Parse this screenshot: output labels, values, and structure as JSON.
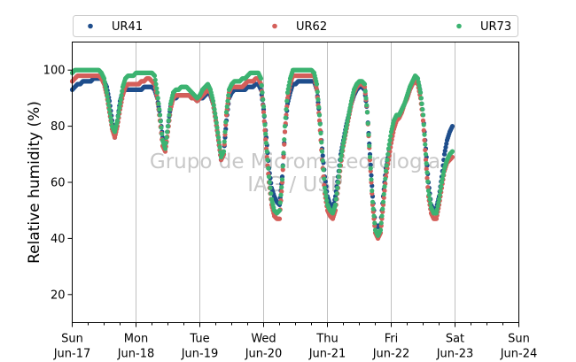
{
  "chart_data": {
    "type": "scatter",
    "title": "",
    "xlabel": "",
    "ylabel": "Relative humidity (%)",
    "ylim": [
      10,
      110
    ],
    "yticks": [
      20,
      40,
      60,
      80,
      100
    ],
    "xlim": [
      "2018-06-17 00:00",
      "2018-06-24 00:00"
    ],
    "xticks": [
      {
        "day": "Sun",
        "date": "Jun-17"
      },
      {
        "day": "Mon",
        "date": "Jun-18"
      },
      {
        "day": "Tue",
        "date": "Jun-19"
      },
      {
        "day": "Wed",
        "date": "Jun-20"
      },
      {
        "day": "Thu",
        "date": "Jun-21"
      },
      {
        "day": "Fri",
        "date": "Jun-22"
      },
      {
        "day": "Sat",
        "date": "Jun-23"
      },
      {
        "day": "Sun",
        "date": "Jun-24"
      }
    ],
    "grid": "vertical",
    "legend_position": "top",
    "watermark": [
      "Grupo de Micrometeorologia",
      "IAG / USP"
    ],
    "sample_interval_hours": 1,
    "series": [
      {
        "name": "UR41",
        "color": "#1f4e8c",
        "x_start": "2018-06-17 00:00",
        "values": [
          93,
          94,
          95,
          95,
          96,
          96,
          96,
          96,
          97,
          97,
          97,
          97,
          96,
          94,
          89,
          82,
          76,
          82,
          89,
          92,
          93,
          93,
          93,
          93,
          93,
          93,
          93,
          94,
          94,
          94,
          94,
          93,
          90,
          84,
          76,
          72,
          80,
          87,
          90,
          90,
          91,
          91,
          91,
          91,
          91,
          90,
          90,
          89,
          90,
          90,
          91,
          92,
          91,
          88,
          82,
          75,
          68,
          70,
          82,
          90,
          92,
          93,
          93,
          93,
          93,
          93,
          94,
          94,
          94,
          95,
          95,
          93,
          86,
          76,
          65,
          58,
          55,
          53,
          52,
          62,
          78,
          88,
          92,
          95,
          95,
          96,
          96,
          96,
          96,
          96,
          96,
          96,
          93,
          84,
          72,
          62,
          55,
          52,
          50,
          55,
          62,
          70,
          75,
          80,
          84,
          88,
          91,
          93,
          94,
          94,
          93,
          85,
          70,
          55,
          45,
          44,
          45,
          55,
          65,
          70,
          75,
          80,
          83,
          84,
          86,
          88,
          90,
          93,
          95,
          97,
          96,
          92,
          84,
          72,
          60,
          52,
          50,
          51,
          55,
          62,
          70,
          75,
          78,
          80
        ]
      },
      {
        "name": "UR62",
        "color": "#d45f5a",
        "x_start": "2018-06-17 00:00",
        "values": [
          96,
          97,
          98,
          98,
          98,
          98,
          98,
          98,
          98,
          98,
          98,
          97,
          95,
          91,
          85,
          79,
          76,
          80,
          86,
          91,
          94,
          95,
          95,
          95,
          95,
          95,
          96,
          96,
          97,
          97,
          96,
          95,
          90,
          82,
          73,
          71,
          78,
          86,
          90,
          91,
          91,
          91,
          91,
          91,
          91,
          90,
          90,
          89,
          90,
          91,
          92,
          93,
          92,
          88,
          82,
          75,
          68,
          70,
          84,
          92,
          94,
          94,
          94,
          94,
          94,
          95,
          96,
          96,
          96,
          97,
          97,
          95,
          85,
          72,
          60,
          52,
          48,
          47,
          47,
          60,
          78,
          90,
          95,
          98,
          98,
          98,
          98,
          98,
          98,
          98,
          98,
          98,
          93,
          82,
          68,
          56,
          50,
          48,
          47,
          50,
          58,
          66,
          73,
          78,
          83,
          88,
          92,
          94,
          95,
          95,
          94,
          85,
          68,
          52,
          42,
          40,
          42,
          52,
          62,
          68,
          74,
          79,
          82,
          83,
          85,
          88,
          90,
          93,
          95,
          96,
          95,
          90,
          82,
          68,
          55,
          49,
          47,
          47,
          52,
          58,
          64,
          67,
          68,
          69
        ]
      },
      {
        "name": "UR73",
        "color": "#3cb371",
        "x_start": "2018-06-17 00:00",
        "values": [
          99,
          100,
          100,
          100,
          100,
          100,
          100,
          100,
          100,
          100,
          100,
          99,
          97,
          92,
          86,
          80,
          78,
          82,
          88,
          94,
          97,
          98,
          98,
          98,
          99,
          99,
          99,
          99,
          99,
          99,
          99,
          98,
          92,
          84,
          75,
          72,
          80,
          88,
          92,
          93,
          93,
          94,
          94,
          94,
          93,
          92,
          91,
          90,
          91,
          93,
          94,
          95,
          93,
          89,
          83,
          76,
          69,
          71,
          85,
          93,
          95,
          96,
          96,
          96,
          97,
          97,
          98,
          99,
          99,
          99,
          99,
          97,
          87,
          74,
          62,
          54,
          50,
          49,
          50,
          61,
          80,
          92,
          97,
          100,
          100,
          100,
          100,
          100,
          100,
          100,
          100,
          99,
          95,
          84,
          71,
          58,
          52,
          50,
          49,
          52,
          60,
          68,
          74,
          79,
          84,
          89,
          93,
          95,
          96,
          96,
          95,
          85,
          69,
          53,
          43,
          41,
          43,
          53,
          64,
          72,
          78,
          82,
          84,
          84,
          86,
          88,
          91,
          94,
          96,
          98,
          97,
          92,
          84,
          70,
          57,
          51,
          49,
          49,
          54,
          60,
          65,
          68,
          70,
          71
        ]
      }
    ]
  }
}
